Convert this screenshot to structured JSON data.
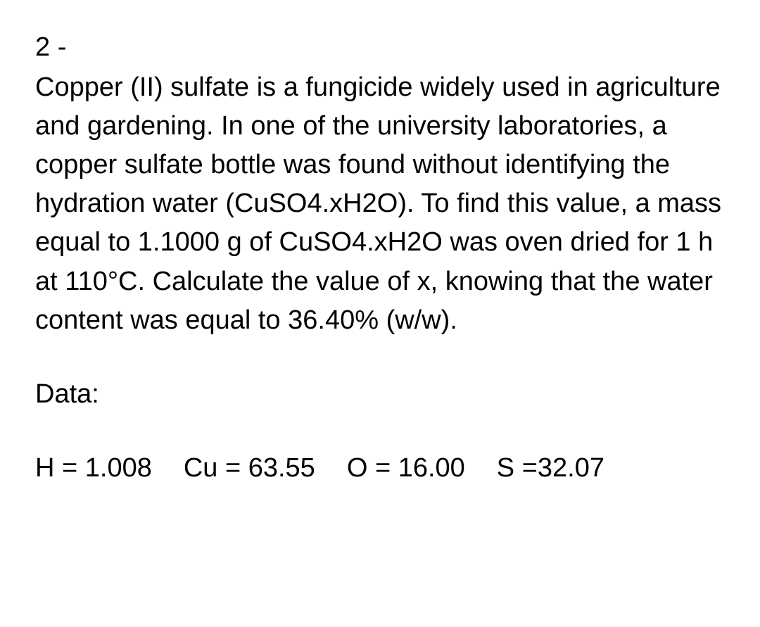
{
  "question": {
    "number": "2 -",
    "text": "Copper (II) sulfate is a fungicide widely used in agriculture and gardening. In one of the university laboratories, a copper sulfate bottle was found without identifying the hydration water (CuSO4.xH2O). To find this value, a mass equal to 1.1000 g of CuSO4.xH2O was oven dried for 1 h at 110°C. Calculate the value of x, knowing that the water content was equal to 36.40% (w/w)."
  },
  "data": {
    "label": "Data:",
    "values": {
      "H": "H = 1.008",
      "Cu": "Cu = 63.55",
      "O": "O = 16.00",
      "S": "S =32.07"
    }
  },
  "styling": {
    "background_color": "#ffffff",
    "text_color": "#000000",
    "font_size": 38,
    "font_family": "Arial",
    "line_height": 1.45
  }
}
